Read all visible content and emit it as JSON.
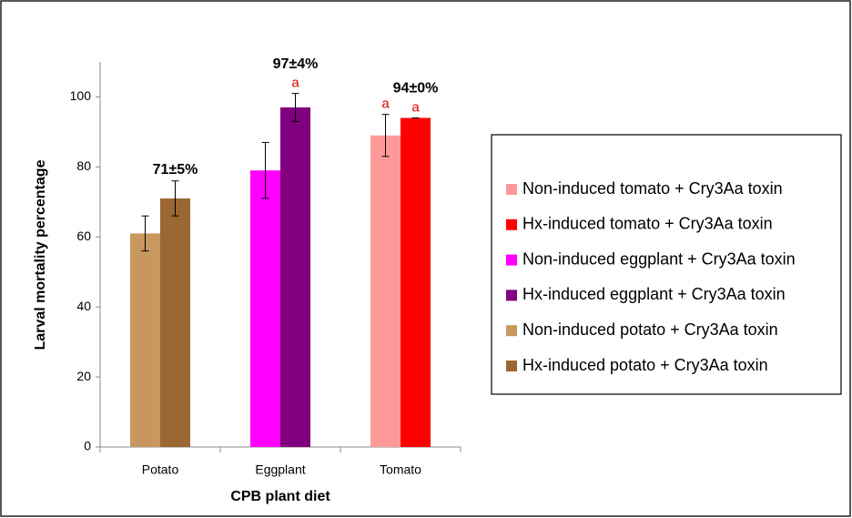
{
  "chart_data": {
    "type": "bar",
    "x_label": "CPB plant diet",
    "y_label": "Larval mortality percentage",
    "categories": [
      "Potato",
      "Eggplant",
      "Tomato"
    ],
    "ylim": [
      0,
      110
    ],
    "yticks": [
      0,
      20,
      40,
      60,
      80,
      100
    ],
    "grid": false,
    "series": [
      {
        "name": "Non-induced tomato + Cry3Aa toxin",
        "color": "#ff9999",
        "values": [
          null,
          null,
          89
        ],
        "errors": [
          null,
          null,
          6
        ],
        "letters": [
          null,
          null,
          "a"
        ]
      },
      {
        "name": "Hx-induced tomato + Cry3Aa toxin",
        "color": "#ff0000",
        "values": [
          null,
          null,
          94
        ],
        "errors": [
          null,
          null,
          0
        ],
        "value_labels": [
          null,
          null,
          "94±0%"
        ],
        "letters": [
          null,
          null,
          "a"
        ]
      },
      {
        "name": "Non-induced eggplant + Cry3Aa toxin",
        "color": "#ff00ff",
        "values": [
          null,
          79,
          null
        ],
        "errors": [
          null,
          8,
          null
        ]
      },
      {
        "name": "Hx-induced eggplant + Cry3Aa toxin",
        "color": "#800080",
        "values": [
          null,
          97,
          null
        ],
        "errors": [
          null,
          4,
          null
        ],
        "value_labels": [
          null,
          "97±4%",
          null
        ],
        "letters": [
          null,
          "a",
          null
        ]
      },
      {
        "name": "Non-induced potato + Cry3Aa toxin",
        "color": "#c8965f",
        "values": [
          61,
          null,
          null
        ],
        "errors": [
          5,
          null,
          null
        ]
      },
      {
        "name": "Hx-induced potato + Cry3Aa toxin",
        "color": "#9b6834",
        "values": [
          71,
          null,
          null
        ],
        "errors": [
          5,
          null,
          null
        ],
        "value_labels": [
          "71±5%",
          null,
          null
        ]
      }
    ]
  }
}
